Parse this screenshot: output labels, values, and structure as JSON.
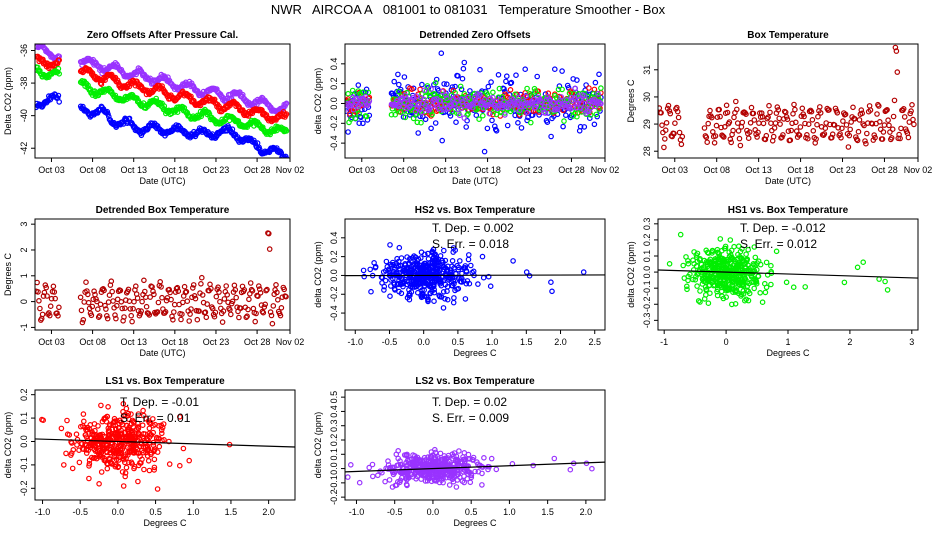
{
  "figure": {
    "title": "NWR   AIRCOA A   081001 to 081031   Temperature Smoother - Box"
  },
  "chart_data": [
    {
      "type": "scatter",
      "id": "p1",
      "title": "Zero Offsets After Pressure Cal.",
      "xlabel": "Date (UTC)",
      "ylabel": "Delta CO2 (ppm)",
      "xlim": [
        0,
        31
      ],
      "ylim": [
        -42.6,
        -35.6
      ],
      "xticks": [
        2,
        7,
        12,
        17,
        22,
        27,
        31
      ],
      "xtick_labels": [
        "Oct 03",
        "Oct 08",
        "Oct 13",
        "Oct 18",
        "Oct 23",
        "Oct 28",
        "Nov 02"
      ],
      "yticks": [
        -42,
        -40,
        -38,
        -36
      ],
      "ytick_labels": [
        "-42",
        "-40",
        "-38",
        "-36"
      ],
      "time_series": true,
      "gaps": [
        [
          3.0,
          5.5
        ]
      ],
      "series": [
        {
          "name": "LS2",
          "color": "#9933ff",
          "anchors": [
            [
              0.0,
              -35.9
            ],
            [
              2.5,
              -36.2
            ],
            [
              5.5,
              -36.6
            ],
            [
              10,
              -37.2
            ],
            [
              15,
              -37.8
            ],
            [
              20,
              -38.4
            ],
            [
              25,
              -38.9
            ],
            [
              30,
              -39.6
            ]
          ]
        },
        {
          "name": "LS1",
          "color": "#ff0000",
          "anchors": [
            [
              0.0,
              -36.6
            ],
            [
              2.5,
              -36.8
            ],
            [
              5.5,
              -37.3
            ],
            [
              10,
              -37.9
            ],
            [
              15,
              -38.5
            ],
            [
              20,
              -39.1
            ],
            [
              25,
              -39.6
            ],
            [
              30,
              -40.2
            ]
          ]
        },
        {
          "name": "HS1",
          "color": "#00ee00",
          "anchors": [
            [
              0.0,
              -37.3
            ],
            [
              2.5,
              -37.4
            ],
            [
              5.5,
              -38.2
            ],
            [
              10,
              -38.8
            ],
            [
              15,
              -39.4
            ],
            [
              20,
              -40.0
            ],
            [
              25,
              -40.4
            ],
            [
              30,
              -41.0
            ]
          ]
        },
        {
          "name": "HS2",
          "color": "#0000ff",
          "anchors": [
            [
              0.0,
              -39.2
            ],
            [
              2.5,
              -39.0
            ],
            [
              5.5,
              -39.6
            ],
            [
              8,
              -39.8
            ],
            [
              10,
              -40.4
            ],
            [
              13,
              -40.8
            ],
            [
              15,
              -40.8
            ],
            [
              20,
              -41.1
            ],
            [
              24,
              -41.0
            ],
            [
              27,
              -41.9
            ],
            [
              30,
              -42.4
            ]
          ]
        }
      ]
    },
    {
      "type": "scatter",
      "id": "p2",
      "title": "Detrended Zero Offsets",
      "xlabel": "Date (UTC)",
      "ylabel": "delta CO2 (ppm)",
      "xlim": [
        0,
        31
      ],
      "ylim": [
        -0.55,
        0.6
      ],
      "xticks": [
        2,
        7,
        12,
        17,
        22,
        27,
        31
      ],
      "xtick_labels": [
        "Oct 03",
        "Oct 08",
        "Oct 13",
        "Oct 18",
        "Oct 23",
        "Oct 28",
        "Nov 02"
      ],
      "yticks": [
        -0.4,
        -0.2,
        0.0,
        0.2,
        0.4
      ],
      "ytick_labels": [
        "-0.4",
        "-0.2",
        "0.0",
        "0.2",
        "0.4"
      ],
      "time_series": true,
      "gaps": [
        [
          3.0,
          5.5
        ]
      ],
      "series": [
        {
          "name": "HS2",
          "color": "#0000ff",
          "spread": 0.32
        },
        {
          "name": "LS1",
          "color": "#ff0000",
          "spread": 0.12
        },
        {
          "name": "HS1",
          "color": "#00ee00",
          "spread": 0.16
        },
        {
          "name": "LS2",
          "color": "#9933ff",
          "spread": 0.1
        }
      ]
    },
    {
      "type": "scatter",
      "id": "p3",
      "title": "Box Temperature",
      "xlabel": "Date (UTC)",
      "ylabel": "Degrees C",
      "xlim": [
        0,
        31
      ],
      "ylim": [
        27.75,
        31.95
      ],
      "xticks": [
        2,
        7,
        12,
        17,
        22,
        27,
        31
      ],
      "xtick_labels": [
        "Oct 03",
        "Oct 08",
        "Oct 13",
        "Oct 18",
        "Oct 23",
        "Oct 28",
        "Nov 02"
      ],
      "yticks": [
        28,
        29,
        30,
        31
      ],
      "ytick_labels": [
        "28",
        "29",
        "30",
        "31"
      ],
      "time_series": true,
      "gaps": [
        [
          3.0,
          5.5
        ]
      ],
      "series": [
        {
          "name": "Box",
          "color": "#b30000",
          "base": 29.0,
          "amp": 0.55
        }
      ]
    },
    {
      "type": "scatter",
      "id": "p4",
      "title": "Detrended Box Temperature",
      "xlabel": "Date (UTC)",
      "ylabel": "Degrees C",
      "xlim": [
        0,
        31
      ],
      "ylim": [
        -1.1,
        3.2
      ],
      "xticks": [
        2,
        7,
        12,
        17,
        22,
        27,
        31
      ],
      "xtick_labels": [
        "Oct 03",
        "Oct 08",
        "Oct 13",
        "Oct 18",
        "Oct 23",
        "Oct 28",
        "Nov 02"
      ],
      "yticks": [
        -1,
        0,
        1,
        2,
        3
      ],
      "ytick_labels": [
        "-1",
        "0",
        "1",
        "2",
        "3"
      ],
      "time_series": true,
      "gaps": [
        [
          3.0,
          5.5
        ]
      ],
      "series": [
        {
          "name": "Box",
          "color": "#b30000",
          "base": 0.0,
          "amp": 0.6
        }
      ]
    },
    {
      "type": "scatter",
      "id": "p5",
      "title": "HS2 vs. Box Temperature",
      "xlabel": "Degrees C",
      "ylabel": "delta CO2 (ppm)",
      "xlim": [
        -1.15,
        2.65
      ],
      "ylim": [
        -0.58,
        0.6
      ],
      "xticks": [
        -1.0,
        -0.5,
        0.0,
        0.5,
        1.0,
        1.5,
        2.0,
        2.5
      ],
      "xtick_labels": [
        "-1.0",
        "-0.5",
        "0.0",
        "0.5",
        "1.0",
        "1.5",
        "2.0",
        "2.5"
      ],
      "yticks": [
        -0.4,
        -0.2,
        0.0,
        0.2,
        0.4
      ],
      "ytick_labels": [
        "-0.4",
        "-0.2",
        "0.0",
        "0.2",
        "0.4"
      ],
      "color": "#0000ff",
      "spread_y": 0.12,
      "fit_slope": 0.002,
      "annotation_lines": [
        "T. Dep. =  0.002",
        "S. Err. =  0.018"
      ]
    },
    {
      "type": "scatter",
      "id": "p6",
      "title": "HS1 vs. Box Temperature",
      "xlabel": "Degrees C",
      "ylabel": "delta CO2 (ppm)",
      "xlim": [
        -1.1,
        3.1
      ],
      "ylim": [
        -0.36,
        0.33
      ],
      "xticks": [
        -1,
        0,
        1,
        2,
        3
      ],
      "xtick_labels": [
        "-1",
        "0",
        "1",
        "2",
        "3"
      ],
      "yticks": [
        -0.3,
        -0.2,
        -0.1,
        0.0,
        0.1,
        0.2,
        0.3
      ],
      "ytick_labels": [
        "-0.3",
        "-0.2",
        "-0.1",
        "0.0",
        "0.1",
        "0.2",
        "0.3"
      ],
      "color": "#00ee00",
      "spread_y": 0.08,
      "fit_slope": -0.012,
      "annotation_lines": [
        "T. Dep. =  -0.012",
        "S. Err. =  0.012"
      ]
    },
    {
      "type": "scatter",
      "id": "p7",
      "title": "LS1 vs. Box Temperature",
      "xlabel": "Degrees C",
      "ylabel": "delta CO2 (ppm)",
      "xlim": [
        -1.1,
        2.35
      ],
      "ylim": [
        -0.25,
        0.22
      ],
      "xticks": [
        -1.0,
        -0.5,
        0.0,
        0.5,
        1.0,
        1.5,
        2.0
      ],
      "xtick_labels": [
        "-1.0",
        "-0.5",
        "0.0",
        "0.5",
        "1.0",
        "1.5",
        "2.0"
      ],
      "yticks": [
        -0.2,
        -0.1,
        0.0,
        0.1,
        0.2
      ],
      "ytick_labels": [
        "-0.2",
        "-0.1",
        "0.0",
        "0.1",
        "0.2"
      ],
      "color": "#ff0000",
      "spread_y": 0.06,
      "fit_slope": -0.01,
      "annotation_lines": [
        "T. Dep. =  -0.01",
        "S. Err. =  0.01"
      ]
    },
    {
      "type": "scatter",
      "id": "p8",
      "title": "LS2 vs. Box Temperature",
      "xlabel": "Degrees C",
      "ylabel": "delta CO2 (ppm)",
      "xlim": [
        -1.15,
        2.25
      ],
      "ylim": [
        -0.22,
        0.55
      ],
      "xticks": [
        -1.0,
        -0.5,
        0.0,
        0.5,
        1.0,
        1.5,
        2.0
      ],
      "xtick_labels": [
        "-1.0",
        "-0.5",
        "0.0",
        "0.5",
        "1.0",
        "1.5",
        "2.0"
      ],
      "yticks": [
        -0.2,
        -0.1,
        0.0,
        0.1,
        0.2,
        0.3,
        0.4,
        0.5
      ],
      "ytick_labels": [
        "-0.2",
        "-0.1",
        "0.0",
        "0.1",
        "0.2",
        "0.3",
        "0.4",
        "0.5"
      ],
      "color": "#9933ff",
      "spread_y": 0.05,
      "fit_slope": 0.02,
      "annotation_lines": [
        "T. Dep. =  0.02",
        "S. Err. =  0.009"
      ]
    }
  ]
}
